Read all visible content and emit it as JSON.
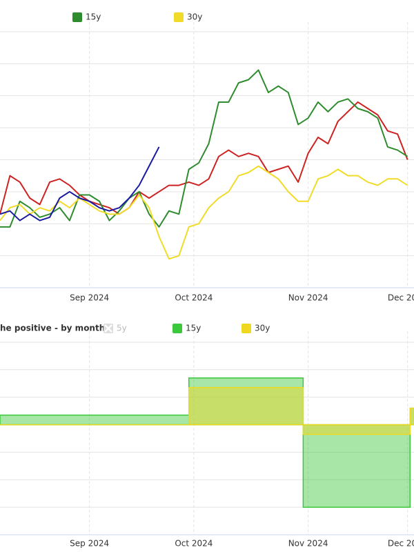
{
  "chart_data": [
    {
      "type": "line",
      "xlim": [
        0,
        83.3
      ],
      "ylim": [
        0,
        8.3
      ],
      "grid": true,
      "xticks": [
        {
          "value": 18,
          "label": "Sep 2024"
        },
        {
          "value": 39,
          "label": "Oct 2024"
        },
        {
          "value": 62,
          "label": "Nov 2024"
        },
        {
          "value": 82,
          "label": "Dec 2024"
        }
      ],
      "x": [
        0,
        2,
        4,
        6,
        8,
        10,
        12,
        14,
        16,
        18,
        20,
        22,
        24,
        26,
        28,
        30,
        32,
        34,
        36,
        38,
        40,
        42,
        44,
        46,
        48,
        50,
        52,
        54,
        56,
        58,
        60,
        62,
        64,
        66,
        68,
        70,
        72,
        74,
        76,
        78,
        80,
        82
      ],
      "series": [
        {
          "color": "#cc2222",
          "values": [
            2.3,
            3.5,
            3.3,
            2.8,
            2.6,
            3.3,
            3.4,
            3.2,
            2.9,
            2.7,
            2.6,
            2.5,
            2.3,
            2.5,
            3.0,
            2.8,
            3.0,
            3.2,
            3.2,
            3.3,
            3.2,
            3.4,
            4.1,
            4.3,
            4.1,
            4.2,
            4.1,
            3.6,
            3.7,
            3.8,
            3.3,
            4.2,
            4.7,
            4.5,
            5.2,
            5.5,
            5.8,
            5.6,
            5.4,
            4.9,
            4.8,
            4.0
          ]
        },
        {
          "name": "15y",
          "color": "#2e8b2e",
          "values": [
            1.9,
            1.9,
            2.7,
            2.5,
            2.2,
            2.3,
            2.5,
            2.1,
            2.9,
            2.9,
            2.7,
            2.1,
            2.4,
            2.8,
            3.0,
            2.3,
            1.9,
            2.4,
            2.3,
            3.7,
            3.9,
            4.5,
            5.8,
            5.8,
            6.4,
            6.5,
            6.8,
            6.1,
            6.3,
            6.1,
            5.1,
            5.3,
            5.8,
            5.5,
            5.8,
            5.9,
            5.6,
            5.5,
            5.3,
            4.4,
            4.3,
            4.1
          ]
        },
        {
          "name": "30y",
          "color": "#f0dc28",
          "values": [
            2.1,
            2.5,
            2.6,
            2.3,
            2.5,
            2.4,
            2.7,
            2.5,
            2.8,
            2.6,
            2.4,
            2.3,
            2.3,
            2.5,
            2.9,
            2.5,
            1.6,
            0.9,
            1.0,
            1.9,
            2.0,
            2.5,
            2.8,
            3.0,
            3.5,
            3.6,
            3.8,
            3.6,
            3.4,
            3.0,
            2.7,
            2.7,
            3.4,
            3.5,
            3.7,
            3.5,
            3.5,
            3.3,
            3.2,
            3.4,
            3.4,
            3.2
          ]
        },
        {
          "color": "#1a1aa0",
          "values": [
            2.3,
            2.4,
            2.1,
            2.3,
            2.1,
            2.2,
            2.8,
            3.0,
            2.8,
            2.7,
            2.5,
            2.4,
            2.5,
            2.8,
            3.2,
            3.8,
            4.4,
            null,
            null,
            null,
            null,
            null,
            null,
            null,
            null,
            null,
            null,
            null,
            null,
            null,
            null,
            null,
            null,
            null,
            null,
            null,
            null,
            null,
            null,
            null,
            null,
            null
          ]
        }
      ]
    },
    {
      "type": "step_area",
      "title": "he positive - by month:",
      "xlim": [
        0,
        83.3
      ],
      "ylim": [
        -4,
        3.4
      ],
      "grid": true,
      "xticks": [
        {
          "value": 18,
          "label": "Sep 2024"
        },
        {
          "value": 39,
          "label": "Oct 2024"
        },
        {
          "value": 62,
          "label": "Nov 2024"
        },
        {
          "value": 82,
          "label": "Dec 2024"
        }
      ],
      "x": [
        0,
        38,
        61,
        82.5
      ],
      "series": [
        {
          "name": "5y",
          "color": "#bbbbbb",
          "visible": false
        },
        {
          "name": "15y",
          "color": "#3cc83c",
          "values": [
            0.35,
            1.7,
            -3.0,
            0.6
          ]
        },
        {
          "name": "30y",
          "color": "#f0d820",
          "values": [
            0.0,
            1.35,
            -0.35,
            0.6
          ]
        }
      ]
    }
  ]
}
